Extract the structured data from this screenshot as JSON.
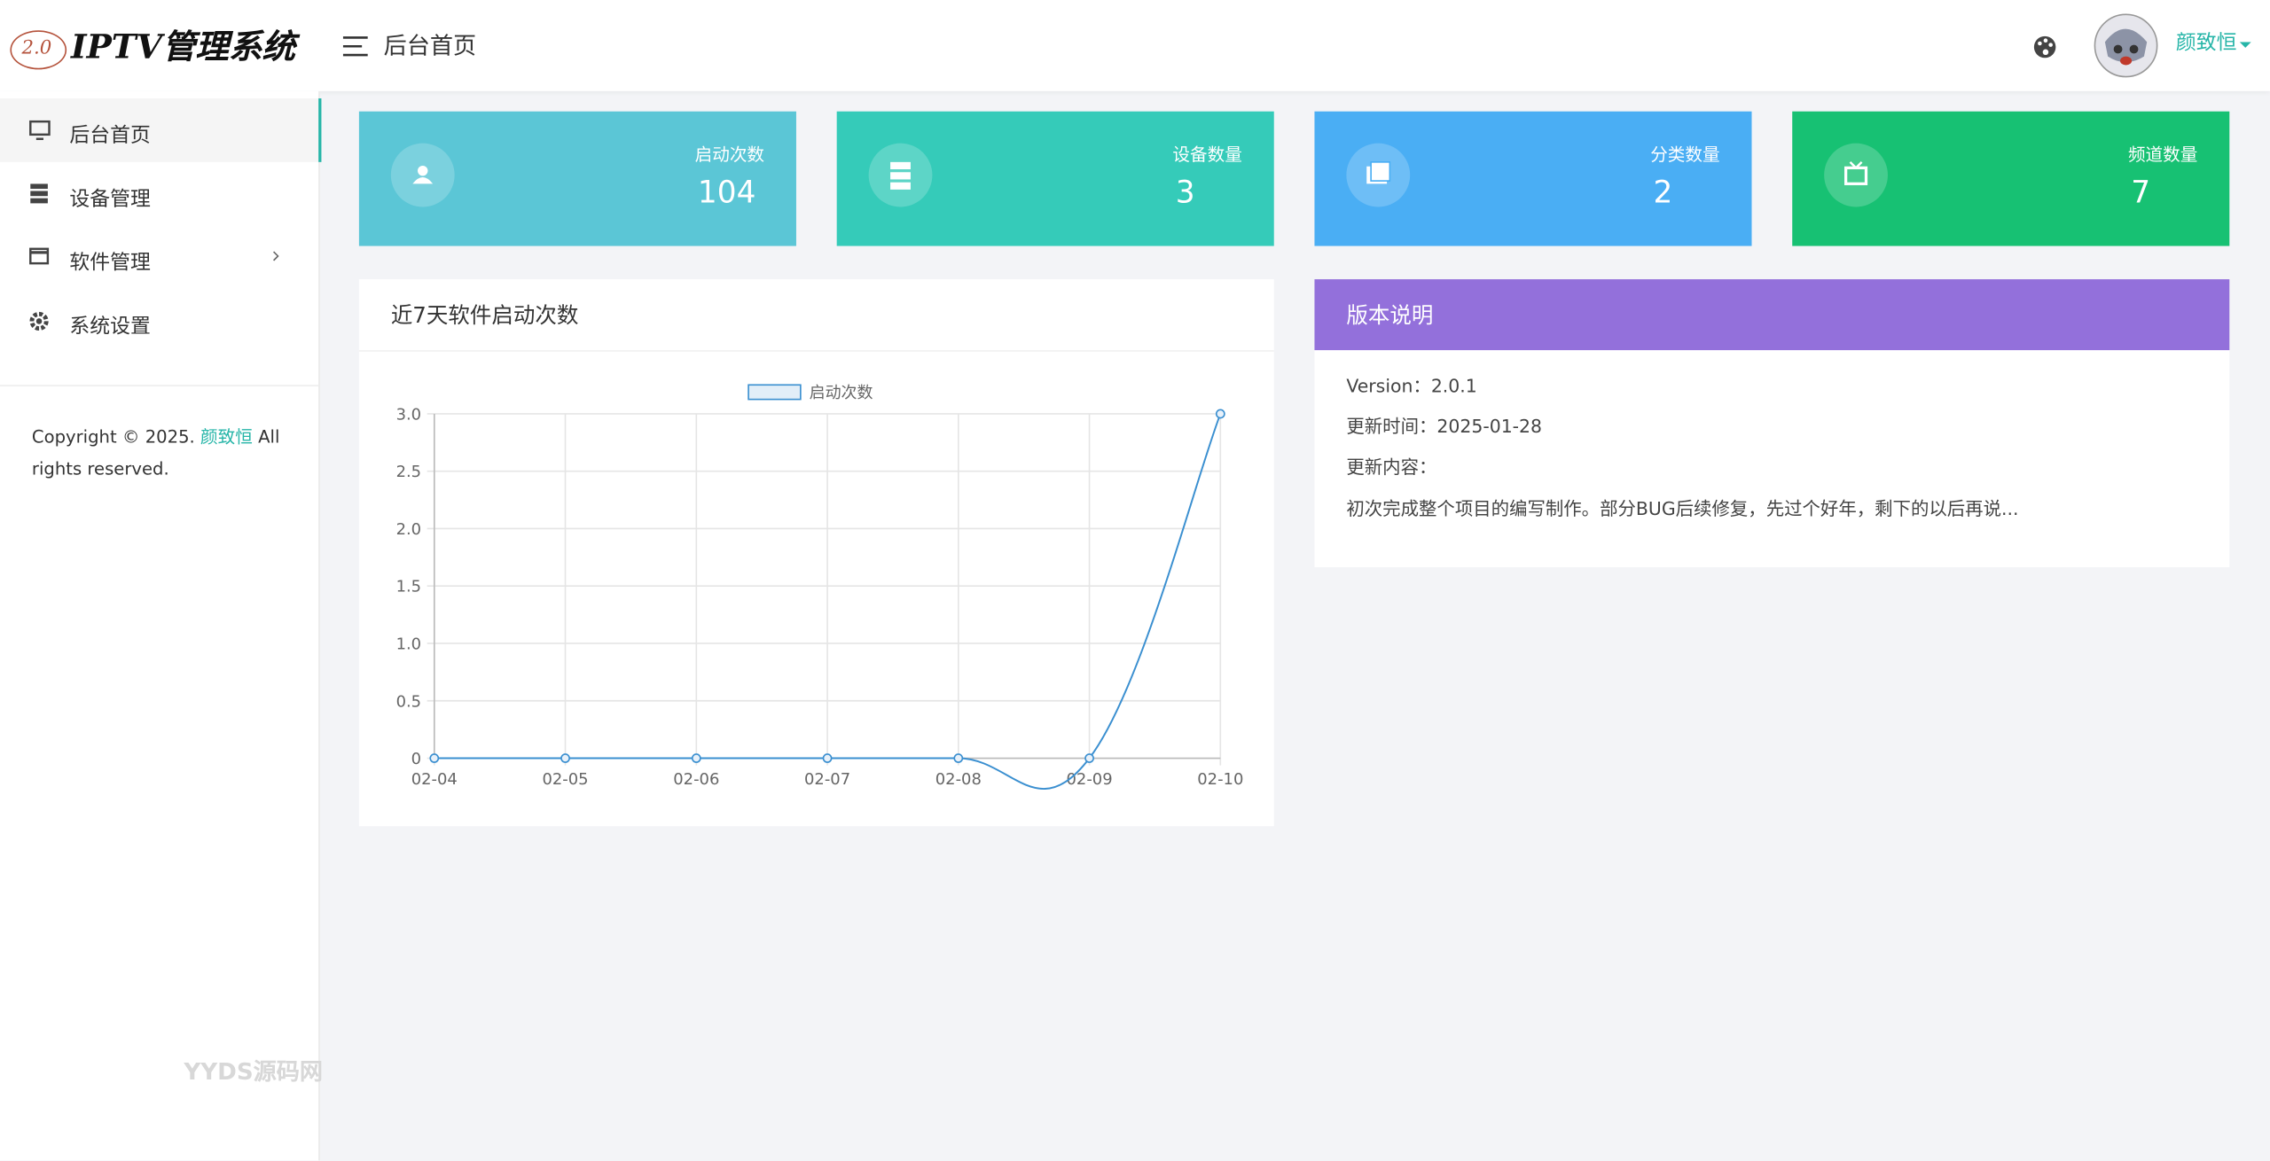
{
  "header": {
    "logo_badge": "2.0",
    "logo_text": "IPTV管理系统",
    "page_title": "后台首页",
    "user_name": "颜致恒"
  },
  "sidebar": {
    "menu": [
      "后台首页",
      "设备管理",
      "软件管理",
      "系统设置"
    ],
    "copyright": {
      "prefix": "Copyright © 2025.",
      "author": "颜致恒",
      "suffix": "All rights reserved."
    }
  },
  "stats": [
    {
      "label": "启动次数",
      "value": 104
    },
    {
      "label": "设备数量",
      "value": 3
    },
    {
      "label": "分类数量",
      "value": 2
    },
    {
      "label": "频道数量",
      "value": 7
    }
  ],
  "chart_card": {
    "title": "近7天软件启动次数"
  },
  "chart_data": {
    "type": "line",
    "categories": [
      "02-04",
      "02-05",
      "02-06",
      "02-07",
      "02-08",
      "02-09",
      "02-10"
    ],
    "series": [
      {
        "name": "启动次数",
        "color": "#3a8fd0",
        "values": [
          0,
          0,
          0,
          0,
          0,
          0,
          3
        ]
      }
    ],
    "ylim": [
      0,
      3
    ],
    "yticks": [
      0,
      0.5,
      {
        "value": 1,
        "label": "1.0"
      },
      1.5,
      {
        "value": 2,
        "label": "2.0"
      },
      2.5,
      {
        "value": 3,
        "label": "3.0"
      }
    ],
    "grid": true
  },
  "version_card": {
    "title": "版本说明",
    "lines": [
      "Version：2.0.1",
      "更新时间：2025-01-28",
      "更新内容：",
      "初次完成整个项目的编写制作。部分BUG后续修复，先过个好年，剩下的以后再说..."
    ]
  },
  "watermark": "YYDS源码网"
}
